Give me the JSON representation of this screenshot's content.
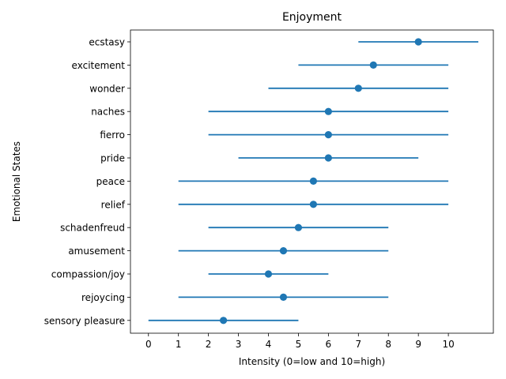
{
  "chart_data": {
    "type": "scatter",
    "title": "Enjoyment",
    "xlabel": "Intensity (0=low and 10=high)",
    "ylabel": "Emotional States",
    "xlim": [
      -0.6,
      11.5
    ],
    "xticks": [
      0,
      1,
      2,
      3,
      4,
      5,
      6,
      7,
      8,
      9,
      10
    ],
    "grid": false,
    "legend": "none",
    "colors": {
      "series": "#1f77b4",
      "axis": "#000000"
    },
    "categories": [
      "ecstasy",
      "excitement",
      "wonder",
      "naches",
      "fierro",
      "pride",
      "peace",
      "relief",
      "schadenfreud",
      "amusement",
      "compassion/joy",
      "rejoycing",
      "sensory pleasure"
    ],
    "points": [
      {
        "label": "ecstasy",
        "value": 9,
        "low": 7,
        "high": 11
      },
      {
        "label": "excitement",
        "value": 7.5,
        "low": 5,
        "high": 10
      },
      {
        "label": "wonder",
        "value": 7,
        "low": 4,
        "high": 10
      },
      {
        "label": "naches",
        "value": 6,
        "low": 2,
        "high": 10
      },
      {
        "label": "fierro",
        "value": 6,
        "low": 2,
        "high": 10
      },
      {
        "label": "pride",
        "value": 6,
        "low": 3,
        "high": 9
      },
      {
        "label": "peace",
        "value": 5.5,
        "low": 1,
        "high": 10
      },
      {
        "label": "relief",
        "value": 5.5,
        "low": 1,
        "high": 10
      },
      {
        "label": "schadenfreud",
        "value": 5,
        "low": 2,
        "high": 8
      },
      {
        "label": "amusement",
        "value": 4.5,
        "low": 1,
        "high": 8
      },
      {
        "label": "compassion/joy",
        "value": 4,
        "low": 2,
        "high": 6
      },
      {
        "label": "rejoycing",
        "value": 4.5,
        "low": 1,
        "high": 8
      },
      {
        "label": "sensory pleasure",
        "value": 2.5,
        "low": 0,
        "high": 5
      }
    ]
  }
}
